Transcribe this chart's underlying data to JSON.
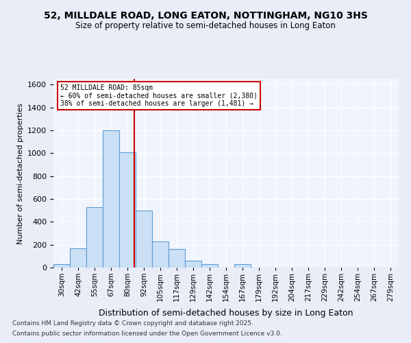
{
  "title1": "52, MILLDALE ROAD, LONG EATON, NOTTINGHAM, NG10 3HS",
  "title2": "Size of property relative to semi-detached houses in Long Eaton",
  "xlabel": "Distribution of semi-detached houses by size in Long Eaton",
  "ylabel": "Number of semi-detached properties",
  "bins": [
    "30sqm",
    "42sqm",
    "55sqm",
    "67sqm",
    "80sqm",
    "92sqm",
    "105sqm",
    "117sqm",
    "129sqm",
    "142sqm",
    "154sqm",
    "167sqm",
    "179sqm",
    "192sqm",
    "204sqm",
    "217sqm",
    "229sqm",
    "242sqm",
    "254sqm",
    "267sqm",
    "279sqm"
  ],
  "bin_edges": [
    30,
    42,
    55,
    67,
    80,
    92,
    105,
    117,
    129,
    142,
    154,
    167,
    179,
    192,
    204,
    217,
    229,
    242,
    254,
    267,
    279
  ],
  "values": [
    30,
    170,
    530,
    1200,
    1010,
    500,
    230,
    160,
    60,
    30,
    0,
    30,
    0,
    0,
    0,
    0,
    0,
    0,
    0,
    0,
    0
  ],
  "bar_color": "#cce0f5",
  "bar_edgecolor": "#5b9bd5",
  "property_size": 85,
  "vline_color": "#cc0000",
  "annotation_text": "52 MILLDALE ROAD: 85sqm\n← 60% of semi-detached houses are smaller (2,380)\n38% of semi-detached houses are larger (1,481) →",
  "annotation_boxcolor": "white",
  "annotation_edgecolor": "#cc0000",
  "ylim": [
    0,
    1650
  ],
  "yticks": [
    0,
    200,
    400,
    600,
    800,
    1000,
    1200,
    1400,
    1600
  ],
  "footer1": "Contains HM Land Registry data © Crown copyright and database right 2025.",
  "footer2": "Contains public sector information licensed under the Open Government Licence v3.0.",
  "bg_color": "#e8edf7",
  "plot_bg_color": "#f0f4fc"
}
